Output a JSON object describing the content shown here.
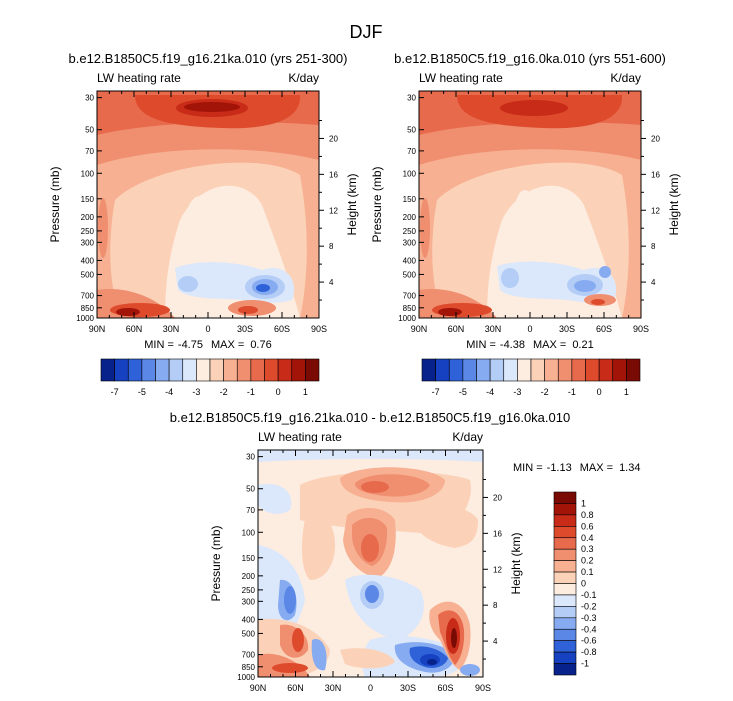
{
  "figure": {
    "title": "DJF"
  },
  "chart_data": [
    {
      "type": "heatmap",
      "title": "b.e12.B1850C5.f19_g16.21ka.010 (yrs 251-300)",
      "left_label": "LW heating rate",
      "right_label": "K/day",
      "ylabel": "Pressure (mb)",
      "y2label": "Height (km)",
      "x_ticks": [
        "90N",
        "60N",
        "30N",
        "0",
        "30S",
        "60S",
        "90S"
      ],
      "y_ticks": [
        "30",
        "50",
        "70",
        "100",
        "150",
        "200",
        "250",
        "300",
        "400",
        "500",
        "700",
        "850",
        "1000"
      ],
      "y2_ticks": [
        "20",
        "16",
        "12",
        "8",
        "4"
      ],
      "min_label": "MIN =",
      "min_value": "-4.75",
      "max_label": "MAX =",
      "max_value": "0.76",
      "colorbar": {
        "orientation": "horizontal",
        "labels": [
          "-7",
          "-5",
          "-4",
          "-3",
          "-2",
          "-1",
          "0",
          "1"
        ],
        "colors": [
          "#08228c",
          "#1641c0",
          "#2f62d8",
          "#5b88e6",
          "#87abf0",
          "#b4cdf6",
          "#dbe7fb",
          "#fdece0",
          "#fbd2b8",
          "#f7b092",
          "#f08e70",
          "#e86a4c",
          "#de4a2c",
          "#c82b17",
          "#a31408",
          "#7a0a04"
        ]
      }
    },
    {
      "type": "heatmap",
      "title": "b.e12.B1850C5.f19_g16.0ka.010 (yrs 551-600)",
      "left_label": "LW heating rate",
      "right_label": "K/day",
      "ylabel": "Pressure (mb)",
      "y2label": "Height (km)",
      "x_ticks": [
        "90N",
        "60N",
        "30N",
        "0",
        "30S",
        "60S",
        "90S"
      ],
      "y_ticks": [
        "30",
        "50",
        "70",
        "100",
        "150",
        "200",
        "250",
        "300",
        "400",
        "500",
        "700",
        "850",
        "1000"
      ],
      "y2_ticks": [
        "20",
        "16",
        "12",
        "8",
        "4"
      ],
      "min_label": "MIN =",
      "min_value": "-4.38",
      "max_label": "MAX =",
      "max_value": "0.21",
      "colorbar": {
        "orientation": "horizontal",
        "labels": [
          "-7",
          "-5",
          "-4",
          "-3",
          "-2",
          "-1",
          "0",
          "1"
        ],
        "colors": [
          "#08228c",
          "#1641c0",
          "#2f62d8",
          "#5b88e6",
          "#87abf0",
          "#b4cdf6",
          "#dbe7fb",
          "#fdece0",
          "#fbd2b8",
          "#f7b092",
          "#f08e70",
          "#e86a4c",
          "#de4a2c",
          "#c82b17",
          "#a31408",
          "#7a0a04"
        ]
      }
    },
    {
      "type": "heatmap",
      "title": "b.e12.B1850C5.f19_g16.21ka.010 - b.e12.B1850C5.f19_g16.0ka.010",
      "left_label": "LW heating rate",
      "right_label": "K/day",
      "ylabel": "Pressure (mb)",
      "y2label": "Height (km)",
      "x_ticks": [
        "90N",
        "60N",
        "30N",
        "0",
        "30S",
        "60S",
        "90S"
      ],
      "y_ticks": [
        "30",
        "50",
        "70",
        "100",
        "150",
        "200",
        "250",
        "300",
        "400",
        "500",
        "700",
        "850",
        "1000"
      ],
      "y2_ticks": [
        "20",
        "16",
        "12",
        "8",
        "4"
      ],
      "min_label": "MIN =",
      "min_value": "-1.13",
      "max_label": "MAX =",
      "max_value": "1.34",
      "colorbar": {
        "orientation": "vertical",
        "labels": [
          "1",
          "0.8",
          "0.6",
          "0.4",
          "0.3",
          "0.2",
          "0.1",
          "0",
          "-0.1",
          "-0.2",
          "-0.3",
          "-0.4",
          "-0.6",
          "-0.8",
          "-1"
        ],
        "colors": [
          "#7a0a04",
          "#a31408",
          "#c82b17",
          "#de4a2c",
          "#e86a4c",
          "#f08e70",
          "#f7b092",
          "#fbd2b8",
          "#fdece0",
          "#dbe7fb",
          "#b4cdf6",
          "#87abf0",
          "#5b88e6",
          "#2f62d8",
          "#1641c0",
          "#08228c"
        ]
      }
    }
  ]
}
